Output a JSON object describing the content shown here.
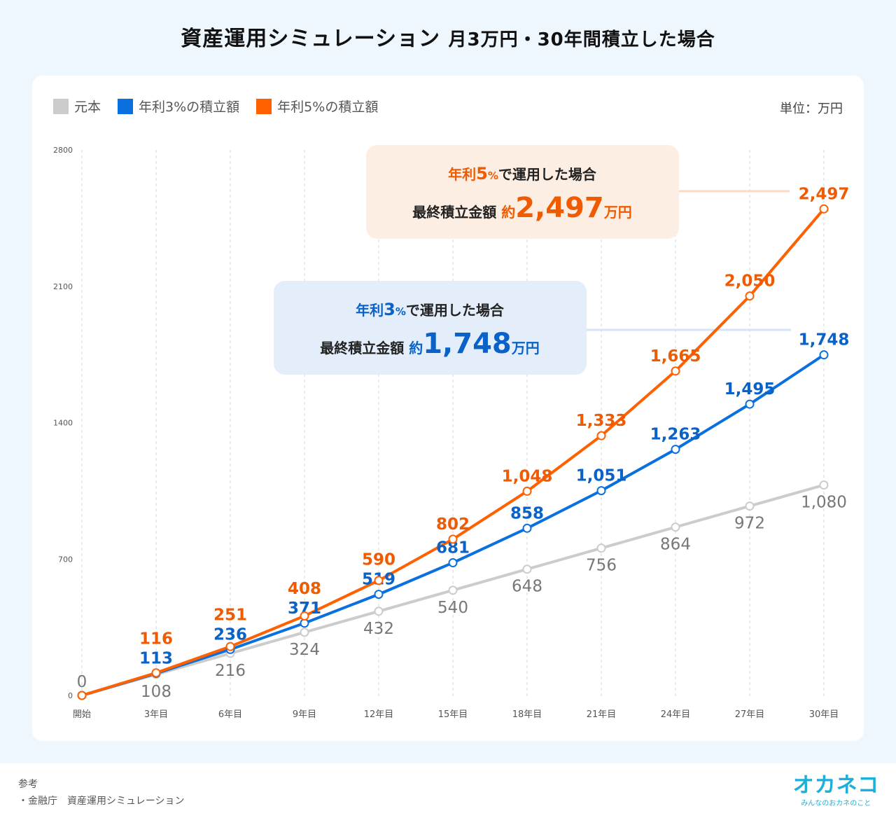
{
  "title": {
    "main": "資産運用シミュレーション",
    "sub": "月3万円・30年間積立した場合"
  },
  "unit_label": "単位：万円",
  "footer": {
    "ref_heading": "参考",
    "ref_item": "・金融庁　資産運用シミュレーション",
    "logo": "オカネコ",
    "logo_tagline": "みんなのおカネのこと"
  },
  "callouts": {
    "five": {
      "line1_pre": "年利",
      "line1_rate": "5",
      "line1_pct": "%",
      "line1_post": "で運用した場合",
      "line2_pre": "最終積立金額",
      "line2_approx": "約",
      "line2_value": "2,497",
      "line2_unit": "万円"
    },
    "three": {
      "line1_pre": "年利",
      "line1_rate": "3",
      "line1_pct": "%",
      "line1_post": "で運用した場合",
      "line2_pre": "最終積立金額",
      "line2_approx": "約",
      "line2_value": "1,748",
      "line2_unit": "万円"
    }
  },
  "chart_data": {
    "type": "line",
    "categories": [
      "開始",
      "3年目",
      "6年目",
      "9年目",
      "12年目",
      "15年目",
      "18年目",
      "21年目",
      "24年目",
      "27年目",
      "30年目"
    ],
    "ylim": [
      0,
      2800
    ],
    "yticks": [
      0,
      700,
      1400,
      2100,
      2800
    ],
    "grid": "vertical dashed",
    "legend": "top-left",
    "series": [
      {
        "name": "元本",
        "color": "#cccccc",
        "label_color": "#777777",
        "values": [
          0,
          108,
          216,
          324,
          432,
          540,
          648,
          756,
          864,
          972,
          1080
        ],
        "labels": [
          "0",
          "108",
          "216",
          "324",
          "432",
          "540",
          "648",
          "756",
          "864",
          "972",
          "1,080"
        ]
      },
      {
        "name": "年利3%の積立額",
        "color": "#0a6fdf",
        "label_color": "#0a62c9",
        "values": [
          0,
          113,
          236,
          371,
          519,
          681,
          858,
          1051,
          1263,
          1495,
          1748
        ],
        "labels": [
          "",
          "113",
          "236",
          "371",
          "519",
          "681",
          "858",
          "1,051",
          "1,263",
          "1,495",
          "1,748"
        ]
      },
      {
        "name": "年利5%の積立額",
        "color": "#ff6000",
        "label_color": "#f05a00",
        "values": [
          0,
          116,
          251,
          408,
          590,
          802,
          1048,
          1333,
          1665,
          2050,
          2497
        ],
        "labels": [
          "",
          "116",
          "251",
          "408",
          "590",
          "802",
          "1,048",
          "1,333",
          "1,665",
          "2,050",
          "2,497"
        ]
      }
    ]
  }
}
